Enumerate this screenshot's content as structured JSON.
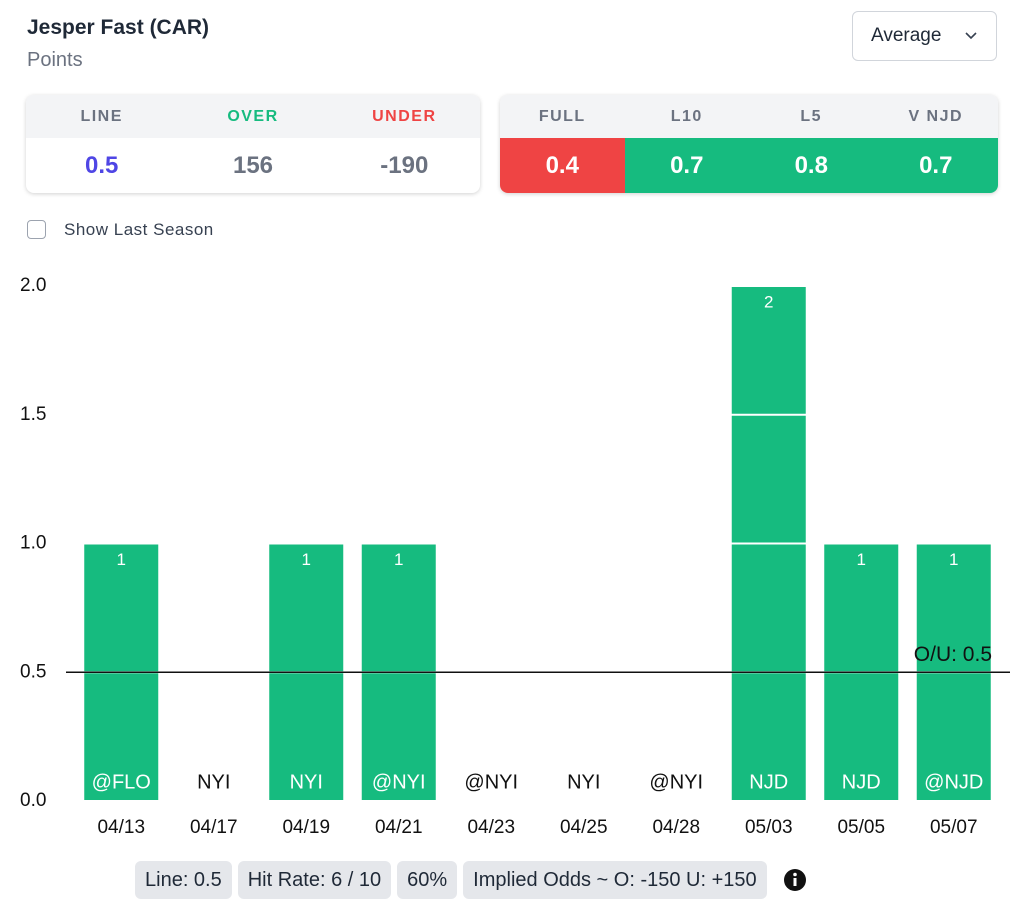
{
  "header": {
    "title": "Jesper Fast (CAR)",
    "subtitle": "Points",
    "dropdown": "Average"
  },
  "odds": {
    "labels": [
      "LINE",
      "OVER",
      "UNDER"
    ],
    "values": [
      0.5,
      156,
      -190
    ],
    "label_colors": [
      "#6b7280",
      "#16bb7f",
      "#ef4444"
    ],
    "value_colors": [
      "#4f46e5",
      "#6b7280",
      "#6b7280"
    ]
  },
  "averages": {
    "labels": [
      "FULL",
      "L10",
      "L5",
      "V NJD"
    ],
    "values": [
      0.4,
      0.7,
      0.8,
      0.7
    ],
    "colors": [
      "#ef4444",
      "#16bb7f",
      "#16bb7f",
      "#16bb7f"
    ]
  },
  "checkbox": "Show Last Season",
  "chart_data": {
    "type": "bar",
    "categories": [
      "04/13",
      "04/17",
      "04/19",
      "04/21",
      "04/23",
      "04/25",
      "04/28",
      "05/03",
      "05/05",
      "05/07"
    ],
    "opponents": [
      "@FLO",
      "NYI",
      "NYI",
      "@NYI",
      "@NYI",
      "NYI",
      "@NYI",
      "NJD",
      "NJD",
      "@NJD"
    ],
    "values": [
      1,
      0,
      1,
      1,
      0,
      0,
      0,
      2,
      1,
      1
    ],
    "value_labels": [
      "1",
      null,
      "1",
      "1",
      null,
      null,
      null,
      "2",
      "1",
      "1"
    ],
    "color": "#16bb7f",
    "ylim": [
      0,
      2
    ],
    "yticks": [
      {
        "value": 0,
        "label": "0.0"
      },
      {
        "value": 0.5,
        "label": "0.5"
      },
      {
        "value": 1,
        "label": "1.0"
      },
      {
        "value": 1.5,
        "label": "1.5"
      },
      {
        "value": 2,
        "label": "2.0"
      }
    ],
    "grid": true,
    "line": {
      "value": 0.5,
      "label": "O/U: 0.5"
    }
  },
  "footer": {
    "pills": [
      "Line: 0.5",
      "Hit Rate: 6 / 10",
      "60%",
      "Implied Odds ~ O: -150 U: +150"
    ]
  }
}
